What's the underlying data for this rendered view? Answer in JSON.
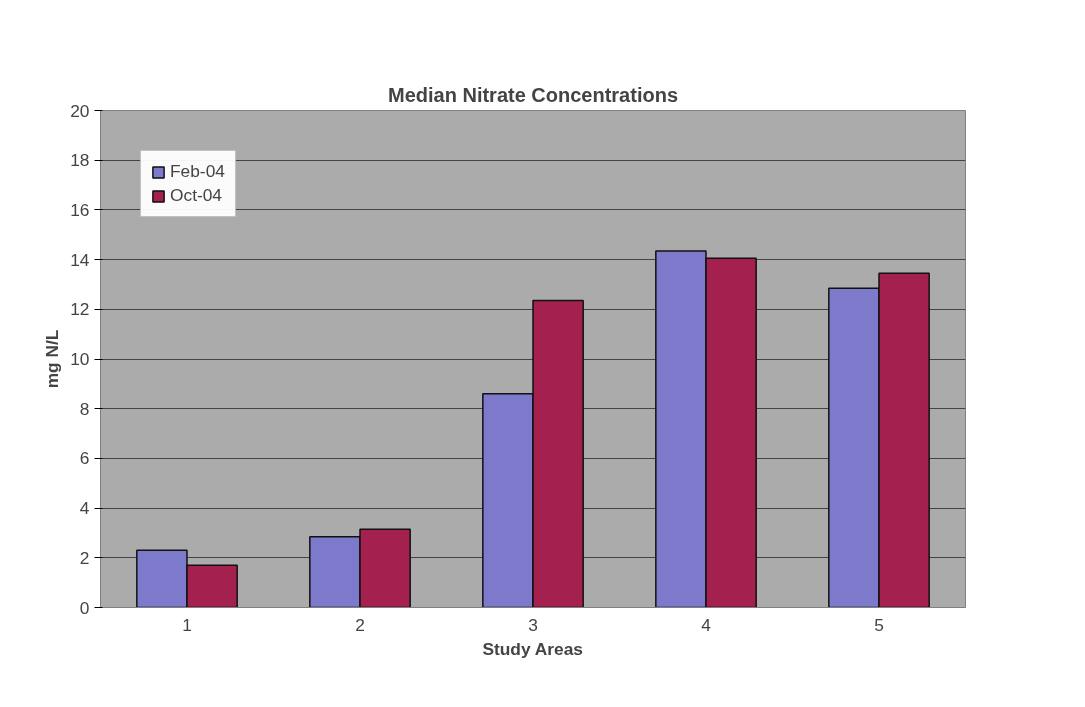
{
  "chart_data": {
    "type": "bar",
    "title": "Median Nitrate Concentrations",
    "xlabel": "Study Areas",
    "ylabel": "mg N/L",
    "categories": [
      "1",
      "2",
      "3",
      "4",
      "5"
    ],
    "series": [
      {
        "name": "Feb-04",
        "color": "#7d7acb",
        "values": [
          2.3,
          2.85,
          8.6,
          14.35,
          12.85
        ]
      },
      {
        "name": "Oct-04",
        "color": "#a3204f",
        "values": [
          1.7,
          3.15,
          12.35,
          14.05,
          13.45
        ]
      }
    ],
    "ylim": [
      0,
      20
    ],
    "yticks": [
      0,
      2,
      4,
      6,
      8,
      10,
      12,
      14,
      16,
      18,
      20
    ],
    "grid": "y",
    "legend": "top left"
  }
}
